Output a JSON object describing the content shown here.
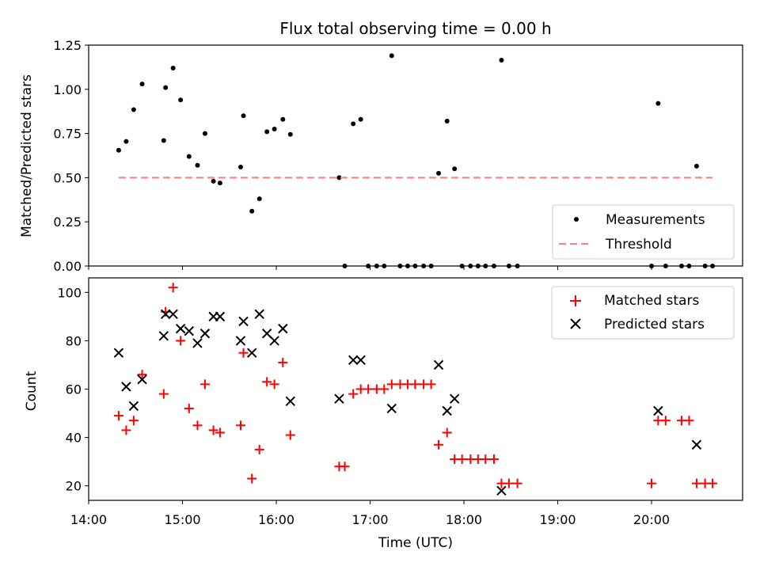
{
  "chart_data": [
    {
      "type": "scatter",
      "title": "Flux total observing time = 0.00 h",
      "xlabel": "",
      "ylabel": "Matched/Predicted stars",
      "xlim": [
        14.0,
        20.97
      ],
      "ylim": [
        0,
        1.25
      ],
      "yticks": [
        0,
        0.25,
        0.5,
        0.75,
        1.0,
        1.25
      ],
      "ytick_labels": [
        "0.00",
        "0.25",
        "0.50",
        "0.75",
        "1.00",
        "1.25"
      ],
      "xticks": [
        14,
        15,
        16,
        17,
        18,
        19,
        20
      ],
      "legend_position": "lower-right",
      "legend": [
        "Measurements",
        "Threshold"
      ],
      "series": [
        {
          "name": "Measurements",
          "marker": "dot",
          "color": "#000000",
          "x": [
            14.32,
            14.4,
            14.48,
            14.57,
            14.8,
            14.82,
            14.9,
            14.98,
            15.07,
            15.16,
            15.24,
            15.33,
            15.4,
            15.62,
            15.65,
            15.74,
            15.82,
            15.9,
            15.98,
            16.07,
            16.15,
            16.67,
            16.73,
            16.82,
            16.9,
            16.98,
            17.07,
            17.15,
            17.23,
            17.32,
            17.4,
            17.48,
            17.57,
            17.65,
            17.73,
            17.82,
            17.9,
            17.98,
            18.07,
            18.15,
            18.23,
            18.32,
            18.4,
            18.48,
            18.57,
            20.0,
            20.07,
            20.15,
            20.32,
            20.4,
            20.48,
            20.57,
            20.65
          ],
          "y": [
            0.655,
            0.705,
            0.885,
            1.03,
            0.71,
            1.01,
            1.12,
            0.94,
            0.62,
            0.57,
            0.75,
            0.48,
            0.47,
            0.56,
            0.85,
            0.31,
            0.38,
            0.76,
            0.775,
            0.83,
            0.745,
            0.5,
            0.0,
            0.805,
            0.83,
            0.0,
            0.0,
            0.0,
            1.19,
            0.0,
            0.0,
            0.0,
            0.0,
            0.0,
            0.525,
            0.82,
            0.55,
            0.0,
            0.0,
            0.0,
            0.0,
            0.0,
            1.165,
            0.0,
            0.0,
            0.0,
            0.92,
            0.0,
            0.0,
            0.0,
            0.565,
            0.0,
            0.0
          ]
        },
        {
          "name": "Threshold",
          "line": "dashed",
          "color": "#ff7f7f",
          "x": [
            14.32,
            20.65
          ],
          "y": [
            0.5,
            0.5
          ]
        }
      ]
    },
    {
      "type": "scatter",
      "title": "",
      "xlabel": "Time (UTC)",
      "ylabel": "Count",
      "xlim": [
        14.0,
        20.97
      ],
      "ylim": [
        14,
        106
      ],
      "yticks": [
        20,
        40,
        60,
        80,
        100
      ],
      "ytick_labels": [
        "20",
        "40",
        "60",
        "80",
        "100"
      ],
      "xticks": [
        14,
        15,
        16,
        17,
        18,
        19,
        20
      ],
      "xtick_labels": [
        "14:00",
        "15:00",
        "16:00",
        "17:00",
        "18:00",
        "19:00",
        "20:00"
      ],
      "legend_position": "top-right",
      "legend": [
        "Matched stars",
        "Predicted stars"
      ],
      "series": [
        {
          "name": "Matched stars",
          "marker": "plus",
          "color": "#ff0000",
          "x": [
            14.32,
            14.4,
            14.48,
            14.57,
            14.8,
            14.82,
            14.9,
            14.98,
            15.07,
            15.16,
            15.24,
            15.33,
            15.4,
            15.62,
            15.65,
            15.74,
            15.82,
            15.9,
            15.98,
            16.07,
            16.15,
            16.67,
            16.73,
            16.82,
            16.9,
            16.98,
            17.07,
            17.15,
            17.23,
            17.32,
            17.4,
            17.48,
            17.57,
            17.65,
            17.73,
            17.82,
            17.9,
            17.98,
            18.07,
            18.15,
            18.23,
            18.32,
            18.4,
            18.48,
            18.57,
            20.0,
            20.07,
            20.15,
            20.32,
            20.4,
            20.48,
            20.57,
            20.65
          ],
          "y": [
            49,
            43,
            47,
            66,
            58,
            92,
            102,
            80,
            52,
            45,
            62,
            43,
            42,
            45,
            75,
            23,
            35,
            63,
            62,
            71,
            41,
            28,
            28,
            58,
            60,
            60,
            60,
            60,
            62,
            62,
            62,
            62,
            62,
            62,
            37,
            42,
            31,
            31,
            31,
            31,
            31,
            31,
            21,
            21,
            21,
            21,
            47,
            47,
            47,
            47,
            21,
            21,
            21
          ]
        },
        {
          "name": "Predicted stars",
          "marker": "x",
          "color": "#000000",
          "x": [
            14.32,
            14.4,
            14.48,
            14.57,
            14.8,
            14.82,
            14.9,
            14.98,
            15.07,
            15.16,
            15.24,
            15.33,
            15.4,
            15.62,
            15.65,
            15.74,
            15.82,
            15.9,
            15.98,
            16.07,
            16.15,
            16.67,
            16.82,
            16.9,
            17.23,
            17.73,
            17.82,
            17.9,
            18.4,
            20.07,
            20.48
          ],
          "y": [
            75,
            61,
            53,
            64,
            82,
            91,
            91,
            85,
            84,
            79,
            83,
            90,
            90,
            80,
            88,
            75,
            91,
            83,
            80,
            85,
            55,
            56,
            72,
            72,
            52,
            70,
            51,
            56,
            18,
            51,
            37
          ]
        }
      ]
    }
  ]
}
